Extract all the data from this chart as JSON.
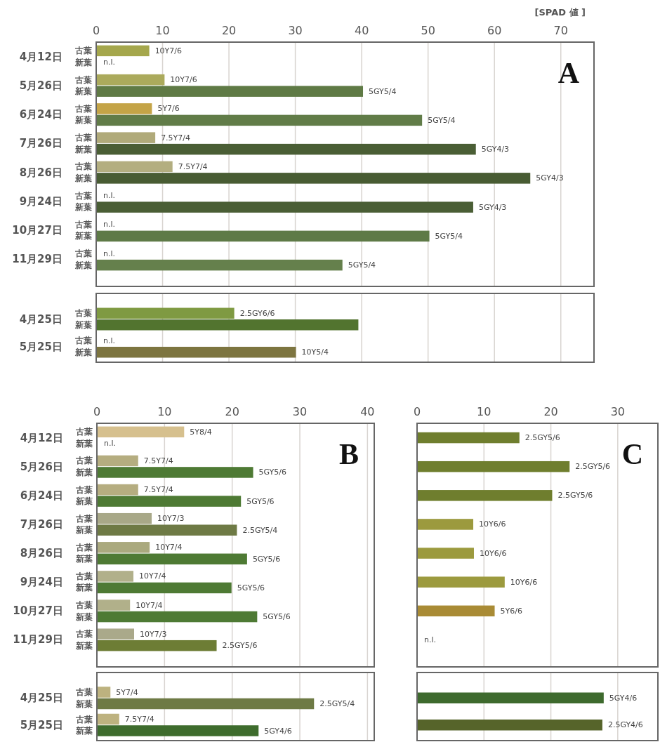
{
  "chart_data": [
    {
      "type": "bar",
      "orientation": "horizontal",
      "title": "A",
      "xlabel": "[SPAD 値 ]",
      "categories": [
        "4月12日",
        "5月26日",
        "6月24日",
        "7月26日",
        "8月26日",
        "9月24日",
        "10月27日",
        "11月29日"
      ],
      "series": [
        {
          "name": "古葉",
          "values": [
            8.0,
            10.3,
            8.4,
            8.9,
            11.5,
            null,
            null,
            null
          ],
          "colors": [
            "#a5a74c",
            "#abaa5c",
            "#c4a447",
            "#b0aa7a",
            "#b3ae80",
            null,
            null,
            null
          ]
        },
        {
          "name": "新葉",
          "values": [
            null,
            40.2,
            49.1,
            57.2,
            65.4,
            56.8,
            50.2,
            37.1
          ],
          "colors": [
            null,
            "#5f7a45",
            "#617c48",
            "#4a5e35",
            "#485c33",
            "#4a5e35",
            "#5e7a47",
            "#65804c"
          ]
        }
      ],
      "xlim": [
        0,
        75
      ],
      "xticks": [
        0,
        10,
        20,
        30,
        40,
        50,
        60,
        70
      ],
      "grid": "x",
      "annotations": [
        {
          "text": "10Y7/6",
          "x": 8.0,
          "y": "4月12日"
        },
        {
          "text": "n.l.",
          "x": 0,
          "y": "4月12日"
        },
        {
          "text": "10Y7/6",
          "x": 10.3,
          "y": "5月26日"
        },
        {
          "text": "5GY5/4",
          "x": 40.2,
          "y": "5月26日"
        },
        {
          "text": "5Y7/6",
          "x": 8.4,
          "y": "6月24日"
        },
        {
          "text": "5GY5/4",
          "x": 49.1,
          "y": "6月24日"
        },
        {
          "text": "7.5Y7/4",
          "x": 8.9,
          "y": "7月26日"
        },
        {
          "text": "5GY4/3",
          "x": 57.2,
          "y": "7月26日"
        },
        {
          "text": "7.5Y7/4",
          "x": 11.5,
          "y": "8月26日"
        },
        {
          "text": "5GY4/3",
          "x": 65.4,
          "y": "8月26日"
        },
        {
          "text": "n.l.",
          "x": 0,
          "y": "9月24日"
        },
        {
          "text": "5GY4/3",
          "x": 56.8,
          "y": "9月24日"
        },
        {
          "text": "n.l.",
          "x": 0,
          "y": "10月27日"
        },
        {
          "text": "5GY5/4",
          "x": 50.2,
          "y": "10月27日"
        },
        {
          "text": "n.l.",
          "x": 0,
          "y": "11月29日"
        },
        {
          "text": "5GY5/4",
          "x": 37.1,
          "y": "11月29日"
        }
      ]
    },
    {
      "type": "bar",
      "orientation": "horizontal",
      "categories": [
        "4月25日",
        "5月25日"
      ],
      "series": [
        {
          "name": "古葉",
          "values": [
            20.8,
            null
          ],
          "colors": [
            "#7f9a42",
            null
          ]
        },
        {
          "name": "新葉",
          "values": [
            39.5,
            30.1
          ],
          "colors": [
            "#52742f",
            "#7d7540"
          ]
        }
      ],
      "xlim": [
        0,
        75
      ],
      "xticks": [
        0,
        10,
        20,
        30,
        40,
        50,
        60,
        70
      ],
      "grid": "x",
      "tick_labels": "y",
      "annotations": [
        {
          "text": "2.5GY6/6",
          "x": 20.8,
          "y": "4月25日"
        },
        {
          "text": "n.l.",
          "x": 0,
          "y": "5月25日"
        },
        {
          "text": "10Y5/4",
          "x": 30.1,
          "y": "5月25日"
        }
      ]
    },
    {
      "type": "bar",
      "orientation": "horizontal",
      "title": "B",
      "categories": [
        "4月12日",
        "5月26日",
        "6月24日",
        "7月26日",
        "8月26日",
        "9月24日",
        "10月27日",
        "11月29日"
      ],
      "series": [
        {
          "name": "古葉",
          "values": [
            12.9,
            6.1,
            6.1,
            8.1,
            7.8,
            5.4,
            4.9,
            5.5
          ],
          "colors": [
            "#d6c08e",
            "#b5ad80",
            "#b5ad80",
            "#a8a888",
            "#aaa97e",
            "#b1b08a",
            "#b1b08a",
            "#aaa98a"
          ]
        },
        {
          "name": "新葉",
          "values": [
            null,
            23.1,
            21.3,
            20.7,
            22.2,
            19.9,
            23.7,
            17.7
          ],
          "colors": [
            null,
            "#4e7a34",
            "#4e7a34",
            "#6e7a45",
            "#4e7a34",
            "#4e7a34",
            "#4e7a34",
            "#6d7d35"
          ]
        }
      ],
      "xlim": [
        0,
        41
      ],
      "xticks": [
        0,
        10,
        20,
        30,
        40
      ],
      "grid": "x",
      "annotations": [
        {
          "text": "5Y8/4",
          "x": 12.9,
          "y": "4月12日"
        },
        {
          "text": "n.l.",
          "x": 0,
          "y": "4月12日"
        },
        {
          "text": "7.5Y7/4",
          "x": 6.1,
          "y": "5月26日"
        },
        {
          "text": "5GY5/6",
          "x": 23.1,
          "y": "5月26日"
        },
        {
          "text": "7.5Y7/4",
          "x": 6.1,
          "y": "6月24日"
        },
        {
          "text": "5GY5/6",
          "x": 21.3,
          "y": "6月24日"
        },
        {
          "text": "10Y7/3",
          "x": 8.1,
          "y": "7月26日"
        },
        {
          "text": "2.5GY5/4",
          "x": 20.7,
          "y": "7月26日"
        },
        {
          "text": "10Y7/4",
          "x": 7.8,
          "y": "8月26日"
        },
        {
          "text": "5GY5/6",
          "x": 22.2,
          "y": "8月26日"
        },
        {
          "text": "10Y7/4",
          "x": 5.4,
          "y": "9月24日"
        },
        {
          "text": "5GY5/6",
          "x": 19.9,
          "y": "9月24日"
        },
        {
          "text": "10Y7/4",
          "x": 4.9,
          "y": "10月27日"
        },
        {
          "text": "5GY5/6",
          "x": 23.7,
          "y": "10月27日"
        },
        {
          "text": "10Y7/3",
          "x": 5.5,
          "y": "11月29日"
        },
        {
          "text": "2.5GY5/6",
          "x": 17.7,
          "y": "11月29日"
        }
      ]
    },
    {
      "type": "bar",
      "orientation": "horizontal",
      "categories": [
        "4月25日",
        "5月25日"
      ],
      "series": [
        {
          "name": "古葉",
          "values": [
            2.0,
            3.3
          ],
          "colors": [
            "#bdb27f",
            "#bdb27f"
          ]
        },
        {
          "name": "新葉",
          "values": [
            32.1,
            23.9
          ],
          "colors": [
            "#6e7a45",
            "#3e6c2d"
          ]
        }
      ],
      "xlim": [
        0,
        41
      ],
      "xticks": [
        0,
        10,
        20,
        30,
        40
      ],
      "grid": "x",
      "tick_labels": "y",
      "annotations": [
        {
          "text": "5Y7/4",
          "x": 2.0,
          "y": "4月25日"
        },
        {
          "text": "2.5GY5/4",
          "x": 32.1,
          "y": "4月25日"
        },
        {
          "text": "7.5Y7/4",
          "x": 3.3,
          "y": "5月25日"
        },
        {
          "text": "5GY4/6",
          "x": 23.9,
          "y": "5月25日"
        }
      ]
    },
    {
      "type": "bar",
      "orientation": "horizontal",
      "title": "C",
      "categories": [
        null,
        null,
        null,
        null,
        null,
        null,
        null,
        null
      ],
      "series": [
        {
          "values": [
            15.3,
            22.8,
            20.2,
            8.4,
            8.5,
            13.1,
            11.6,
            null
          ],
          "colors": [
            "#6f7e2e",
            "#6f7e2e",
            "#6f7e2e",
            "#9c9a3e",
            "#9c9a3e",
            "#9c9a3e",
            "#a98b35",
            null
          ]
        }
      ],
      "xlim": [
        0,
        36
      ],
      "xticks": [
        0,
        10,
        20,
        30
      ],
      "grid": "x",
      "tick_labels": "x",
      "annotations": [
        "2.5GY5/6",
        "2.5GY5/6",
        "2.5GY5/6",
        "10Y6/6",
        "10Y6/6",
        "10Y6/6",
        "5Y6/6",
        "n.l."
      ]
    },
    {
      "type": "bar",
      "orientation": "horizontal",
      "categories": [
        null,
        null
      ],
      "series": [
        {
          "values": [
            27.9,
            27.7
          ],
          "colors": [
            "#3e6a2e",
            "#56642a"
          ]
        }
      ],
      "xlim": [
        0,
        36
      ],
      "xticks": [
        0,
        10,
        20,
        30
      ],
      "grid": "x",
      "tick_labels": false,
      "annotations": [
        "5GY4/6",
        "2.5GY4/6"
      ]
    }
  ]
}
